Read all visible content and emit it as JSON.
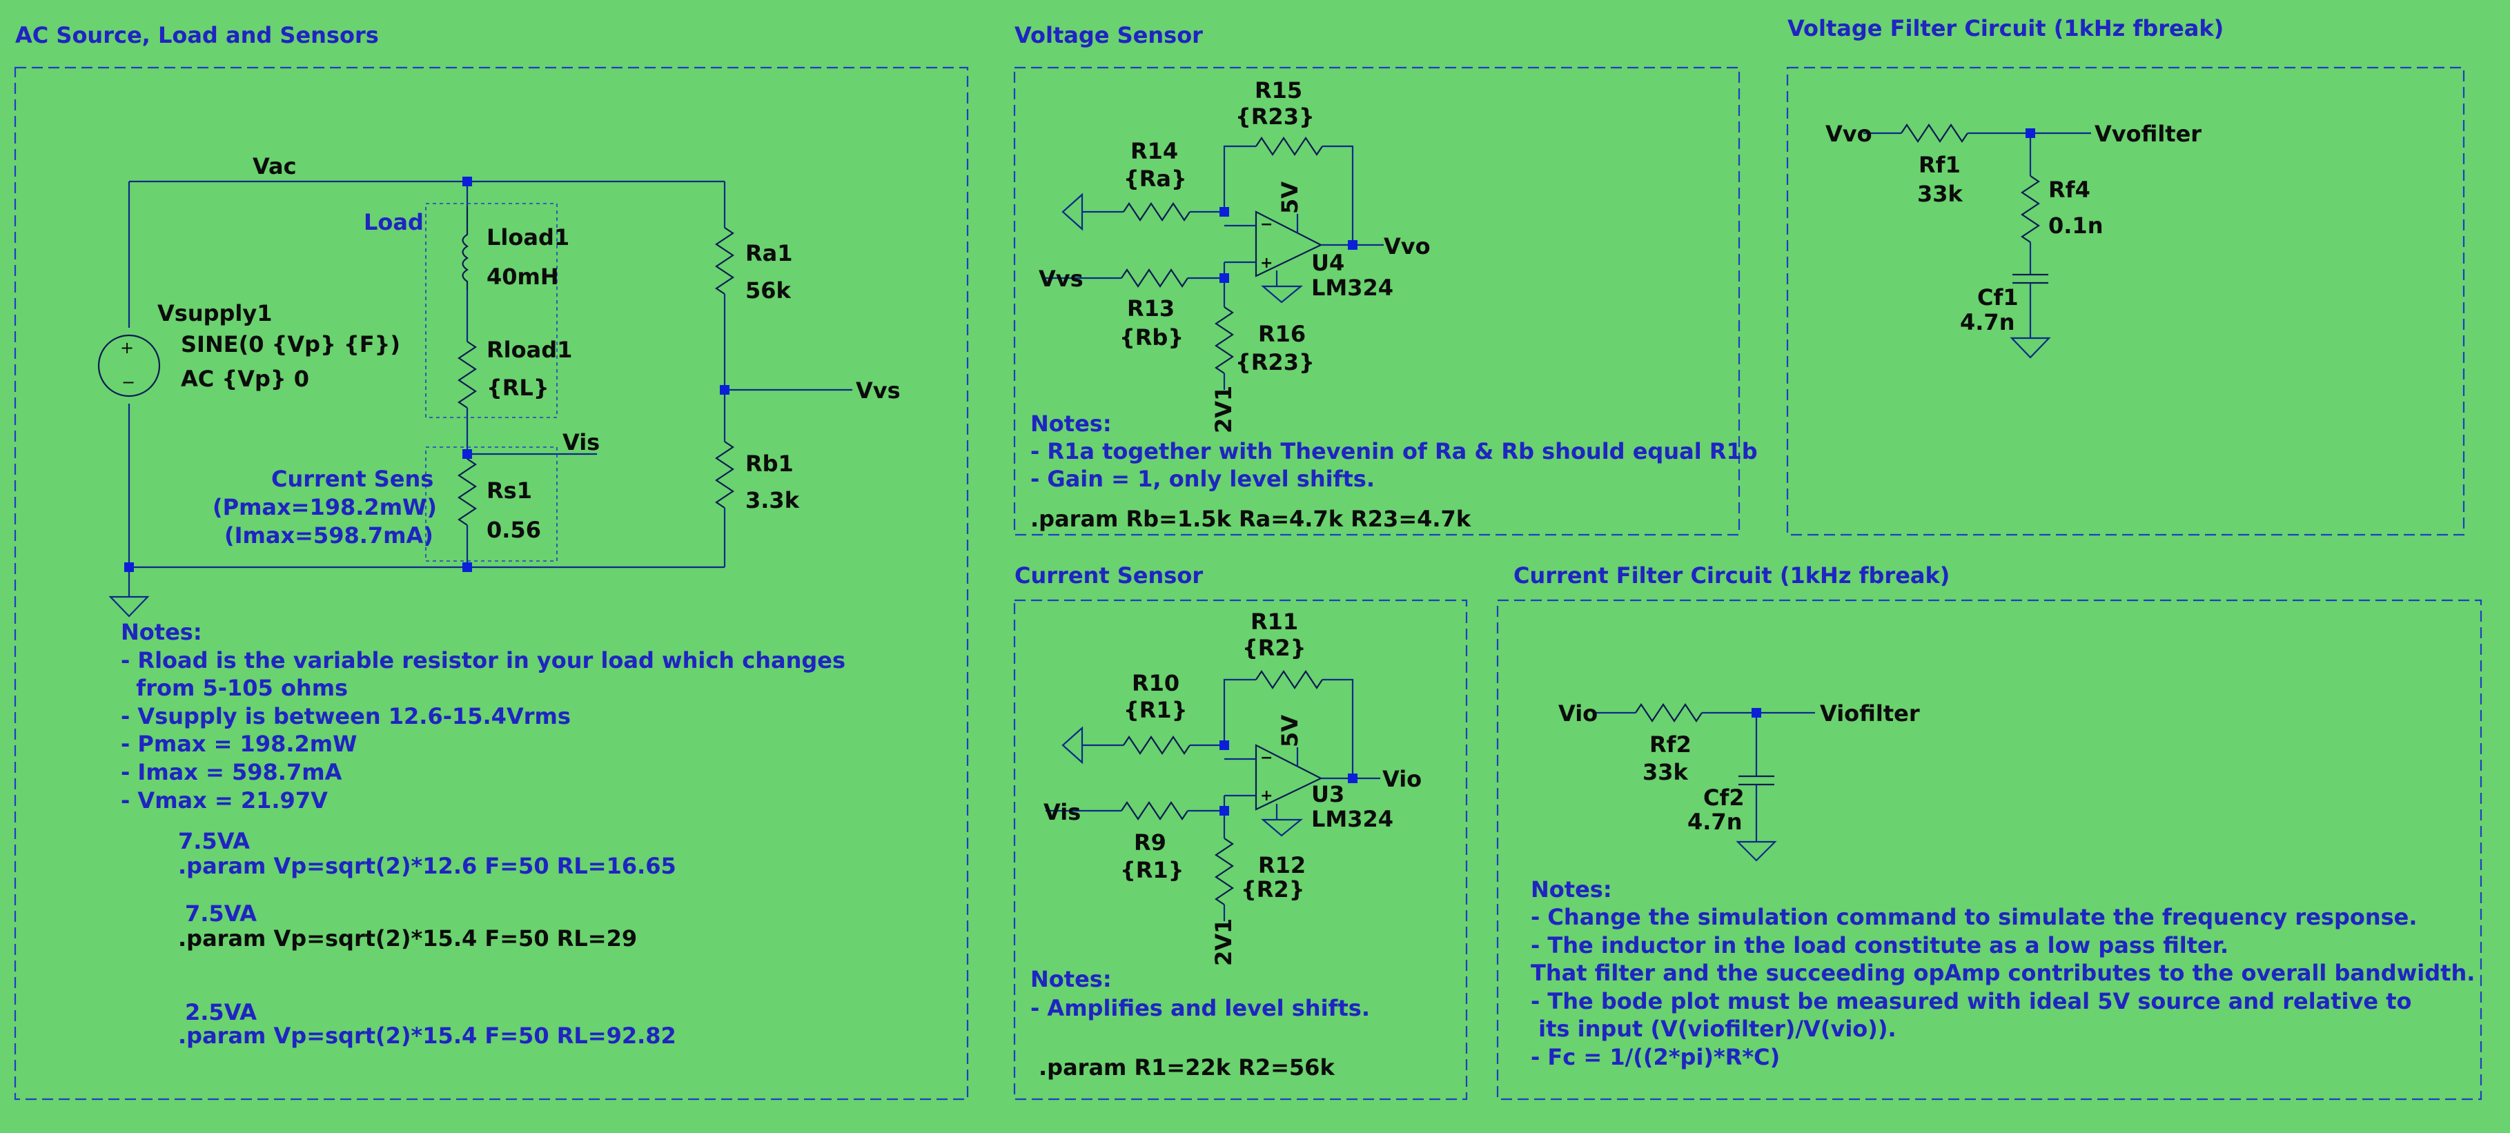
{
  "sections": {
    "ac": "AC Source, Load and Sensors",
    "vsensor": "Voltage Sensor",
    "vfilter": "Voltage Filter Circuit (1kHz fbreak)",
    "isensor": "Current Sensor",
    "ifilter": "Current Filter Circuit (1kHz fbreak)"
  },
  "ac": {
    "vac": "Vac",
    "vvs": "Vvs",
    "vis": "Vis",
    "load_label": "Load",
    "vsupply_name": "Vsupply1",
    "vsupply_sine": "SINE(0 {Vp} {F})",
    "vsupply_ac": "AC {Vp} 0",
    "lload_name": "Lload1",
    "lload_value": "40mH",
    "rload_name": "Rload1",
    "rload_value": "{RL}",
    "ra1_name": "Ra1",
    "ra1_value": "56k",
    "rb1_name": "Rb1",
    "rb1_value": "3.3k",
    "rs1_name": "Rs1",
    "rs1_value": "0.56",
    "current_sens": [
      "Current Sens",
      "(Pmax=198.2mW)",
      "(Imax=598.7mA)"
    ],
    "notes": [
      "Notes:",
      "- Rload is the variable resistor in your load which changes",
      "  from 5-105 ohms",
      "- Vsupply is between 12.6-15.4Vrms",
      "- Pmax = 198.2mW",
      "- Imax = 598.7mA",
      "- Vmax = 21.97V"
    ],
    "params": [
      {
        "label": "7.5VA",
        "cmd": ".param Vp=sqrt(2)*12.6 F=50 RL=16.65"
      },
      {
        "label": "7.5VA",
        "cmd": ".param Vp=sqrt(2)*15.4 F=50 RL=29"
      },
      {
        "label": "2.5VA",
        "cmd": ".param Vp=sqrt(2)*15.4 F=50 RL=92.82"
      }
    ]
  },
  "vsensor": {
    "r15_name": "R15",
    "r15_value": "{R23}",
    "r14_name": "R14",
    "r14_value": "{Ra}",
    "r13_name": "R13",
    "r13_value": "{Rb}",
    "r16_name": "R16",
    "r16_value": "{R23}",
    "u_name": "U4",
    "u_model": "LM324",
    "supply": "5V",
    "ref": "2V1",
    "input": "Vvs",
    "output": "Vvo",
    "pin_plus": "+",
    "pin_minus": "−",
    "notes": [
      "Notes:",
      "- R1a together with Thevenin of Ra & Rb should equal R1b",
      "- Gain = 1, only level shifts."
    ],
    "param": ".param Rb=1.5k Ra=4.7k R23=4.7k"
  },
  "vfilter": {
    "input": "Vvo",
    "output": "Vvofilter",
    "rf1_name": "Rf1",
    "rf1_value": "33k",
    "rf4_name": "Rf4",
    "rf4_value": "0.1n",
    "cf1_name": "Cf1",
    "cf1_value": "4.7n"
  },
  "isensor": {
    "r11_name": "R11",
    "r11_value": "{R2}",
    "r10_name": "R10",
    "r10_value": "{R1}",
    "r9_name": "R9",
    "r9_value": "{R1}",
    "r12_name": "R12",
    "r12_value": "{R2}",
    "u_name": "U3",
    "u_model": "LM324",
    "supply": "5V",
    "ref": "2V1",
    "input": "Vis",
    "output": "Vio",
    "pin_plus": "+",
    "pin_minus": "−",
    "notes": [
      "Notes:",
      "- Amplifies and level shifts."
    ],
    "param": ".param R1=22k R2=56k"
  },
  "ifilter": {
    "input": "Vio",
    "output": "Viofilter",
    "rf2_name": "Rf2",
    "rf2_value": "33k",
    "cf2_name": "Cf2",
    "cf2_value": "4.7n",
    "notes": [
      "Notes:",
      "- Change the simulation command to simulate the frequency response.",
      "- The inductor in the load constitute as a low pass filter.",
      "That filter and the succeeding opAmp contributes to the overall bandwidth.",
      "- The bode plot must be measured with ideal 5V source and relative to",
      " its input (V(viofilter)/V(vio)).",
      "- Fc = 1/((2*pi)*R*C)"
    ]
  }
}
